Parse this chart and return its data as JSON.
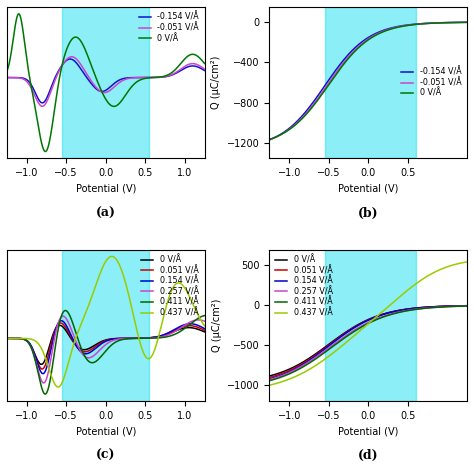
{
  "subplot_labels": [
    "(a)",
    "(b)",
    "(c)",
    "(d)"
  ],
  "cyan_region_a": [
    -0.55,
    0.55
  ],
  "cyan_region_b": [
    -0.55,
    0.6
  ],
  "cyan_region_c": [
    -0.55,
    0.55
  ],
  "cyan_region_d": [
    -0.55,
    0.6
  ],
  "x_range": [
    -1.25,
    1.25
  ],
  "panel_a": {
    "xlabel": "Potential (V)",
    "ylabel": "",
    "xticks": [
      -1.0,
      -0.5,
      0.0,
      0.5,
      1.0
    ],
    "series": [
      {
        "label": "-0.154 V/Å",
        "color": "#1111cc"
      },
      {
        "label": "-0.051 V/Å",
        "color": "#cc44cc"
      },
      {
        "label": "0 V/Å",
        "color": "#007700"
      }
    ]
  },
  "panel_b": {
    "xlabel": "Potential (V)",
    "ylabel": "Q (μC/cm²)",
    "ylim": [
      -1350,
      150
    ],
    "yticks": [
      0,
      -400,
      -800,
      -1200
    ],
    "xticks": [
      -1.0,
      -0.5,
      0.0,
      0.5
    ],
    "series": [
      {
        "label": "-0.154 V/Å",
        "color": "#1111cc"
      },
      {
        "label": "-0.051 V/Å",
        "color": "#cc44cc"
      },
      {
        "label": "0 V/Å",
        "color": "#007700"
      }
    ]
  },
  "panel_c": {
    "xlabel": "Potential (V)",
    "ylabel": "",
    "xticks": [
      -1.0,
      -0.5,
      0.0,
      0.5,
      1.0
    ],
    "series": [
      {
        "label": "0 V/Å",
        "color": "#000000"
      },
      {
        "label": "0.051 V/Å",
        "color": "#cc0000"
      },
      {
        "label": "0.154 V/Å",
        "color": "#0000cc"
      },
      {
        "label": "0.257 V/Å",
        "color": "#cc44cc"
      },
      {
        "label": "0.411 V/Å",
        "color": "#006600"
      },
      {
        "label": "0.437 V/Å",
        "color": "#99cc00"
      }
    ]
  },
  "panel_d": {
    "xlabel": "Potential (V)",
    "ylabel": "Q (μC/cm²)",
    "ylim": [
      -1200,
      700
    ],
    "yticks": [
      500,
      0,
      -500,
      -1000
    ],
    "xticks": [
      -1.0,
      -0.5,
      0.0,
      0.5
    ],
    "series": [
      {
        "label": "0 V/Å",
        "color": "#000000"
      },
      {
        "label": "0.051 V/Å",
        "color": "#cc0000"
      },
      {
        "label": "0.154 V/Å",
        "color": "#0000cc"
      },
      {
        "label": "0.257 V/Å",
        "color": "#cc44cc"
      },
      {
        "label": "0.411 V/Å",
        "color": "#006600"
      },
      {
        "label": "0.437 V/Å",
        "color": "#99cc00"
      }
    ]
  },
  "background_color": "#ffffff",
  "cyan_color": "#00ddee",
  "cyan_alpha": 0.45
}
